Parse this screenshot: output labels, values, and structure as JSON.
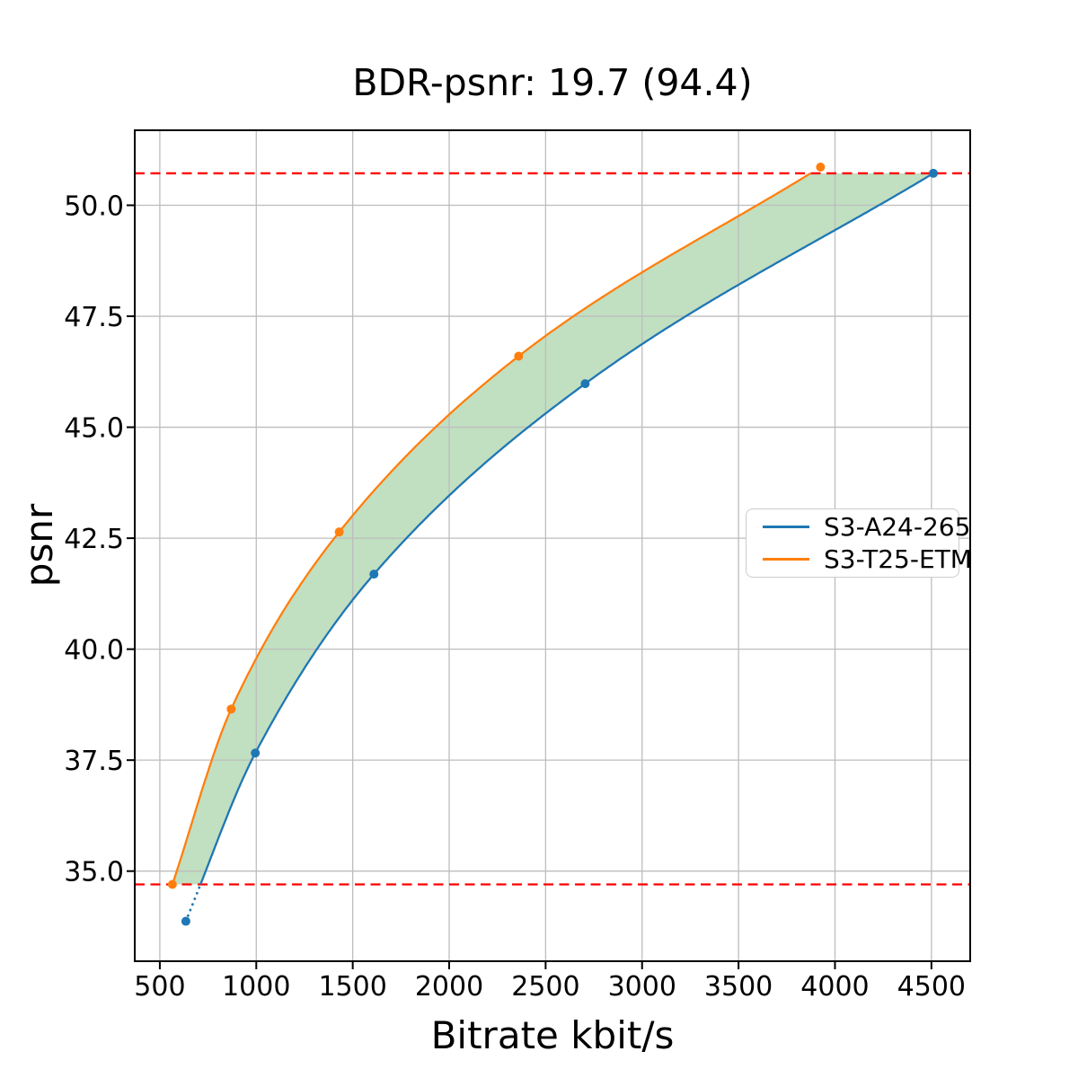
{
  "chart_data": {
    "type": "line",
    "title": "BDR-psnr: 19.7 (94.4)",
    "xlabel": "Bitrate kbit/s",
    "ylabel": "psnr",
    "xlim": [
      370,
      4701
    ],
    "ylim": [
      32.97,
      51.69
    ],
    "grid": true,
    "xticks": [
      500,
      1000,
      1500,
      2000,
      2500,
      3000,
      3500,
      4000,
      4500
    ],
    "xtick_labels": [
      "500",
      "1000",
      "1500",
      "2000",
      "2500",
      "3000",
      "3500",
      "4000",
      "4500"
    ],
    "yticks": [
      35.0,
      37.5,
      40.0,
      42.5,
      45.0,
      47.5,
      50.0
    ],
    "ytick_labels": [
      "35.0",
      "37.5",
      "40.0",
      "42.5",
      "45.0",
      "47.5",
      "50.0"
    ],
    "legend_position": "center-right",
    "series": [
      {
        "name": "S3-A24-265",
        "color": "#1f77b4",
        "points": [
          [
            635,
            33.87
          ],
          [
            995,
            37.66
          ],
          [
            1610,
            41.69
          ],
          [
            2705,
            45.98
          ],
          [
            4510,
            50.72
          ]
        ],
        "clipped_below": true
      },
      {
        "name": "S3-T25-ETM",
        "color": "#ff7f0e",
        "points": [
          [
            565,
            34.7
          ],
          [
            870,
            38.65
          ],
          [
            1430,
            42.64
          ],
          [
            2360,
            46.6
          ],
          [
            3925,
            50.86
          ]
        ],
        "clipped_below": false
      }
    ],
    "hlines": {
      "values": [
        34.7,
        50.72
      ],
      "color": "#ff0000",
      "style": "dashed"
    },
    "fill_between": {
      "color": "#228b22",
      "opacity": 0.28
    },
    "grid_color": "#bdbdbd",
    "spine_color": "#000000"
  }
}
